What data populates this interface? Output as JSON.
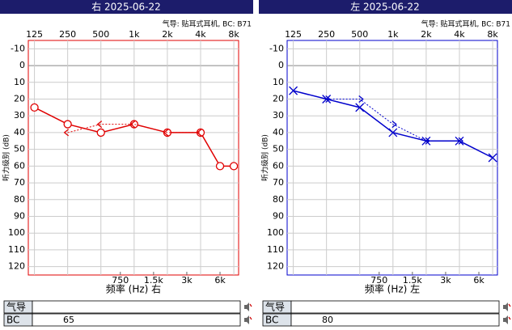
{
  "chart_data": [
    {
      "type": "line",
      "title": "右 2025-06-22",
      "subtitle": "气导: 贴耳式耳机, BC: B71",
      "xlabel": "频率 (Hz) 右",
      "ylabel": "听力级别 (dB)",
      "color": "#e00000",
      "log_x": true,
      "y_inverted": true,
      "xlim": [
        110,
        8840
      ],
      "ylim": [
        -15,
        125
      ],
      "xticks": [
        125,
        250,
        500,
        {
          "value": 1000,
          "label": "1k"
        },
        {
          "value": 2000,
          "label": "2k"
        },
        {
          "value": 4000,
          "label": "4k"
        },
        {
          "value": 8000,
          "label": "8k"
        }
      ],
      "xticks_bottom": [
        750,
        {
          "value": 1500,
          "label": "1.5k"
        },
        {
          "value": 3000,
          "label": "3k"
        },
        {
          "value": 6000,
          "label": "6k"
        }
      ],
      "yticks": [
        -10,
        0,
        10,
        20,
        30,
        40,
        50,
        60,
        70,
        80,
        90,
        100,
        110,
        120
      ],
      "series": [
        {
          "marker": "o",
          "dash": false,
          "x": [
            125,
            250,
            500,
            1000,
            2000,
            4000,
            6000,
            8000
          ],
          "values": [
            25,
            35,
            40,
            35,
            40,
            40,
            60,
            60
          ]
        },
        {
          "marker": "<",
          "dash": true,
          "x": [
            250,
            500,
            1000,
            2000,
            4000
          ],
          "values": [
            40,
            35,
            35,
            40,
            40
          ]
        }
      ],
      "table": [
        {
          "label": "气导"
        },
        {
          "label": "BC",
          "value": 65
        }
      ]
    },
    {
      "type": "line",
      "title": "左 2025-06-22",
      "subtitle": "气导: 贴耳式耳机, BC: B71",
      "xlabel": "频率 (Hz) 左",
      "ylabel": "听力级别 (dB)",
      "color": "#0000cc",
      "log_x": true,
      "y_inverted": true,
      "xlim": [
        110,
        8840
      ],
      "ylim": [
        -15,
        125
      ],
      "xticks": [
        125,
        250,
        500,
        {
          "value": 1000,
          "label": "1k"
        },
        {
          "value": 2000,
          "label": "2k"
        },
        {
          "value": 4000,
          "label": "4k"
        },
        {
          "value": 8000,
          "label": "8k"
        }
      ],
      "xticks_bottom": [
        750,
        {
          "value": 1500,
          "label": "1.5k"
        },
        {
          "value": 3000,
          "label": "3k"
        },
        {
          "value": 6000,
          "label": "6k"
        }
      ],
      "yticks": [
        -10,
        0,
        10,
        20,
        30,
        40,
        50,
        60,
        70,
        80,
        90,
        100,
        110,
        120
      ],
      "series": [
        {
          "marker": "x",
          "dash": false,
          "x": [
            125,
            250,
            500,
            1000,
            2000,
            4000,
            8000
          ],
          "values": [
            15,
            20,
            25,
            40,
            45,
            45,
            55
          ]
        },
        {
          "marker": ">",
          "dash": true,
          "x": [
            250,
            500,
            1000,
            2000,
            4000
          ],
          "values": [
            20,
            20,
            35,
            45,
            45
          ]
        }
      ],
      "table": [
        {
          "label": "气导"
        },
        {
          "label": "BC",
          "value": 80
        }
      ]
    }
  ]
}
